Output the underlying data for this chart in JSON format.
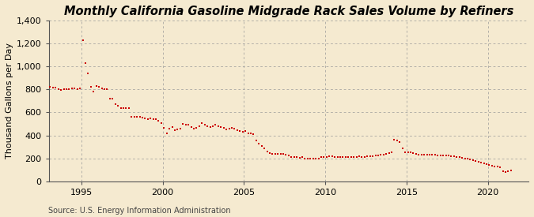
{
  "title": "Monthly California Gasoline Midgrade Rack Sales Volume by Refiners",
  "ylabel": "Thousand Gallons per Day",
  "source": "Source: U.S. Energy Information Administration",
  "background_color": "#f5ead0",
  "plot_bg_color": "#f5ead0",
  "dot_color": "#cc0000",
  "xlim": [
    1993.0,
    2022.5
  ],
  "ylim": [
    0,
    1400
  ],
  "yticks": [
    0,
    200,
    400,
    600,
    800,
    1000,
    1200,
    1400
  ],
  "xticks": [
    1995,
    2000,
    2005,
    2010,
    2015,
    2020
  ],
  "grid_color": "#999999",
  "title_fontsize": 10.5,
  "label_fontsize": 8,
  "tick_fontsize": 8,
  "source_fontsize": 7,
  "data": {
    "dates": [
      1993.083,
      1993.25,
      1993.417,
      1993.583,
      1993.75,
      1993.917,
      1994.083,
      1994.25,
      1994.417,
      1994.583,
      1994.75,
      1994.917,
      1995.083,
      1995.25,
      1995.417,
      1995.583,
      1995.75,
      1995.917,
      1996.083,
      1996.25,
      1996.417,
      1996.583,
      1996.75,
      1996.917,
      1997.083,
      1997.25,
      1997.417,
      1997.583,
      1997.75,
      1997.917,
      1998.083,
      1998.25,
      1998.417,
      1998.583,
      1998.75,
      1998.917,
      1999.083,
      1999.25,
      1999.417,
      1999.583,
      1999.75,
      1999.917,
      2000.083,
      2000.25,
      2000.417,
      2000.583,
      2000.75,
      2000.917,
      2001.083,
      2001.25,
      2001.417,
      2001.583,
      2001.75,
      2001.917,
      2002.083,
      2002.25,
      2002.417,
      2002.583,
      2002.75,
      2002.917,
      2003.083,
      2003.25,
      2003.417,
      2003.583,
      2003.75,
      2003.917,
      2004.083,
      2004.25,
      2004.417,
      2004.583,
      2004.75,
      2004.917,
      2005.083,
      2005.25,
      2005.417,
      2005.583,
      2005.75,
      2005.917,
      2006.083,
      2006.25,
      2006.417,
      2006.583,
      2006.75,
      2006.917,
      2007.083,
      2007.25,
      2007.417,
      2007.583,
      2007.75,
      2007.917,
      2008.083,
      2008.25,
      2008.417,
      2008.583,
      2008.75,
      2008.917,
      2009.083,
      2009.25,
      2009.417,
      2009.583,
      2009.75,
      2009.917,
      2010.083,
      2010.25,
      2010.417,
      2010.583,
      2010.75,
      2010.917,
      2011.083,
      2011.25,
      2011.417,
      2011.583,
      2011.75,
      2011.917,
      2012.083,
      2012.25,
      2012.417,
      2012.583,
      2012.75,
      2012.917,
      2013.083,
      2013.25,
      2013.417,
      2013.583,
      2013.75,
      2013.917,
      2014.083,
      2014.25,
      2014.417,
      2014.583,
      2014.75,
      2014.917,
      2015.083,
      2015.25,
      2015.417,
      2015.583,
      2015.75,
      2015.917,
      2016.083,
      2016.25,
      2016.417,
      2016.583,
      2016.75,
      2016.917,
      2017.083,
      2017.25,
      2017.417,
      2017.583,
      2017.75,
      2017.917,
      2018.083,
      2018.25,
      2018.417,
      2018.583,
      2018.75,
      2018.917,
      2019.083,
      2019.25,
      2019.417,
      2019.583,
      2019.75,
      2019.917,
      2020.083,
      2020.25,
      2020.417,
      2020.583,
      2020.75,
      2020.917,
      2021.083,
      2021.25,
      2021.417
    ],
    "values": [
      820,
      815,
      815,
      800,
      795,
      800,
      805,
      800,
      810,
      810,
      805,
      810,
      1230,
      1030,
      940,
      820,
      780,
      830,
      820,
      810,
      800,
      800,
      720,
      720,
      670,
      655,
      640,
      640,
      640,
      640,
      560,
      560,
      560,
      560,
      555,
      550,
      540,
      550,
      540,
      540,
      525,
      510,
      465,
      415,
      460,
      470,
      445,
      455,
      460,
      500,
      490,
      490,
      470,
      460,
      465,
      480,
      505,
      495,
      480,
      470,
      480,
      490,
      480,
      470,
      465,
      450,
      460,
      465,
      460,
      445,
      440,
      430,
      435,
      420,
      420,
      410,
      355,
      330,
      305,
      285,
      260,
      248,
      240,
      240,
      240,
      240,
      238,
      230,
      222,
      210,
      210,
      210,
      203,
      208,
      200,
      200,
      200,
      200,
      200,
      200,
      210,
      210,
      213,
      220,
      220,
      212,
      210,
      210,
      210,
      210,
      210,
      210,
      210,
      210,
      220,
      210,
      210,
      218,
      220,
      220,
      222,
      228,
      230,
      230,
      242,
      245,
      255,
      360,
      355,
      345,
      285,
      250,
      252,
      250,
      248,
      240,
      232,
      230,
      230,
      230,
      230,
      230,
      230,
      228,
      228,
      228,
      225,
      222,
      220,
      215,
      212,
      210,
      206,
      200,
      196,
      190,
      183,
      175,
      170,
      163,
      157,
      152,
      145,
      138,
      132,
      128,
      122,
      88,
      80,
      90,
      95
    ]
  }
}
